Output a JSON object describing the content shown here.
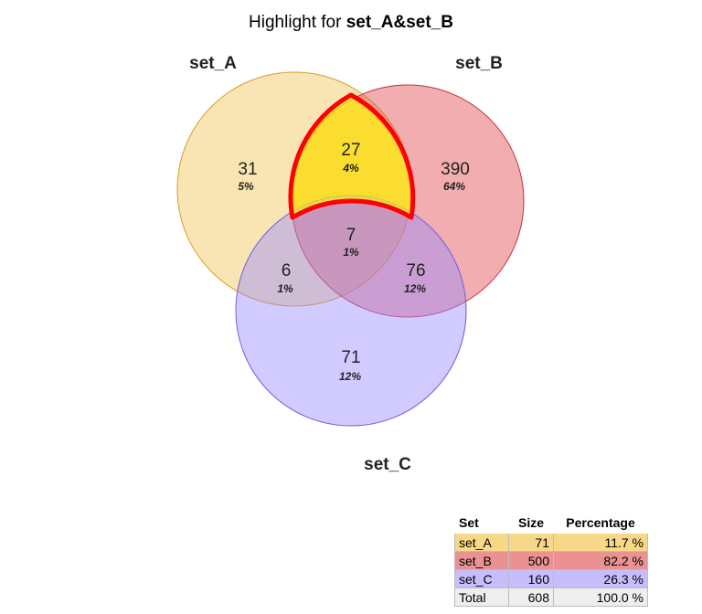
{
  "title": {
    "prefix": "Highlight for ",
    "highlight": "set_A&set_B"
  },
  "sets": [
    {
      "name": "set_A",
      "color": "#f0c24a"
    },
    {
      "name": "set_B",
      "color": "#e3545a"
    },
    {
      "name": "set_C",
      "color": "#9b8cff"
    }
  ],
  "regions": {
    "a_only": {
      "count": "31",
      "pct": "5%"
    },
    "b_only": {
      "count": "390",
      "pct": "64%"
    },
    "c_only": {
      "count": "71",
      "pct": "12%"
    },
    "ab_only": {
      "count": "27",
      "pct": "4%"
    },
    "ac_only": {
      "count": "6",
      "pct": "1%"
    },
    "bc_only": {
      "count": "76",
      "pct": "12%"
    },
    "abc": {
      "count": "7",
      "pct": "1%"
    }
  },
  "highlight_style": {
    "fill": "#ffff00",
    "stroke": "#ff0000"
  },
  "summary_table": {
    "headers": [
      "Set",
      "Size",
      "Percentage"
    ],
    "rows": [
      {
        "set": "set_A",
        "size": "71",
        "percentage": "11.7 %",
        "color": "#f7d889"
      },
      {
        "set": "set_B",
        "size": "500",
        "percentage": "82.2 %",
        "color": "#ea9292"
      },
      {
        "set": "set_C",
        "size": "160",
        "percentage": "26.3 %",
        "color": "#c7bdfd"
      },
      {
        "set": "Total",
        "size": "608",
        "percentage": "100.0 %",
        "color": "#eeeeee"
      }
    ]
  }
}
